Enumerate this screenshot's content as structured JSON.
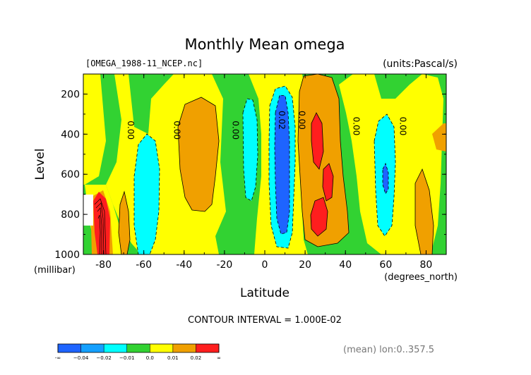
{
  "chart_data": {
    "type": "contour",
    "title": "Monthly Mean omega",
    "file_label": "[OMEGA_1988-11_NCEP.nc]",
    "units_label": "(units:Pascal/s)",
    "xlabel": "Latitude",
    "x_units": "(degrees_north)",
    "ylabel": "Level",
    "y_units": "(millibar)",
    "x_ticks": [
      -80,
      -60,
      -40,
      -20,
      0,
      20,
      40,
      60,
      80
    ],
    "x_tick_labels": [
      "-80",
      "-60",
      "-40",
      "-20",
      "0",
      "20",
      "40",
      "60",
      "80"
    ],
    "y_ticks": [
      200,
      400,
      600,
      800,
      1000
    ],
    "y_tick_labels": [
      "200",
      "400",
      "600",
      "800",
      "1000"
    ],
    "xlim": [
      -90,
      90
    ],
    "ylim": [
      1000,
      100
    ],
    "contour_interval": "CONTOUR INTERVAL = 1.000E-02",
    "footer_note": "(mean) lon:0..357.5",
    "contour_labels": [
      {
        "text": "0.00",
        "lat": -68,
        "lev": 380
      },
      {
        "text": "0.00",
        "lat": -45,
        "lev": 380
      },
      {
        "text": "0.00",
        "lat": -16,
        "lev": 380
      },
      {
        "text": "0.02",
        "lat": 7,
        "lev": 330
      },
      {
        "text": "0.00",
        "lat": 17,
        "lev": 330
      },
      {
        "text": "0.00",
        "lat": 44,
        "lev": 360
      },
      {
        "text": "0.00",
        "lat": 67,
        "lev": 360
      }
    ],
    "legend": {
      "bins": [
        "-∞",
        "-0.04",
        "-0.02",
        "-0.01",
        "0.0",
        "0.01",
        "0.02",
        "∞"
      ],
      "labels": [
        "-∞",
        "−0.04",
        "−0.02",
        "−0.01",
        "0.0",
        "0.01",
        "0.02",
        "∞"
      ],
      "colors": [
        "#1e64ff",
        "#14a0ff",
        "#00ffff",
        "#32d232",
        "#ffff00",
        "#f0a000",
        "#ff1e1e"
      ]
    },
    "field": {
      "description_levels": "filled contour bands of omega vs latitude and pressure level",
      "bands": [
        {
          "level": "strong negative",
          "color": "#1e64ff"
        },
        {
          "level": "-0.02 to -0.01",
          "color": "#00ffff"
        },
        {
          "level": "-0.01 to 0.0",
          "color": "#32d232"
        },
        {
          "level": "0.0 to 0.01",
          "color": "#ffff00"
        },
        {
          "level": "0.01 to 0.02",
          "color": "#f0a000"
        },
        {
          "level": "above 0.02",
          "color": "#ff1e1e"
        }
      ]
    }
  }
}
